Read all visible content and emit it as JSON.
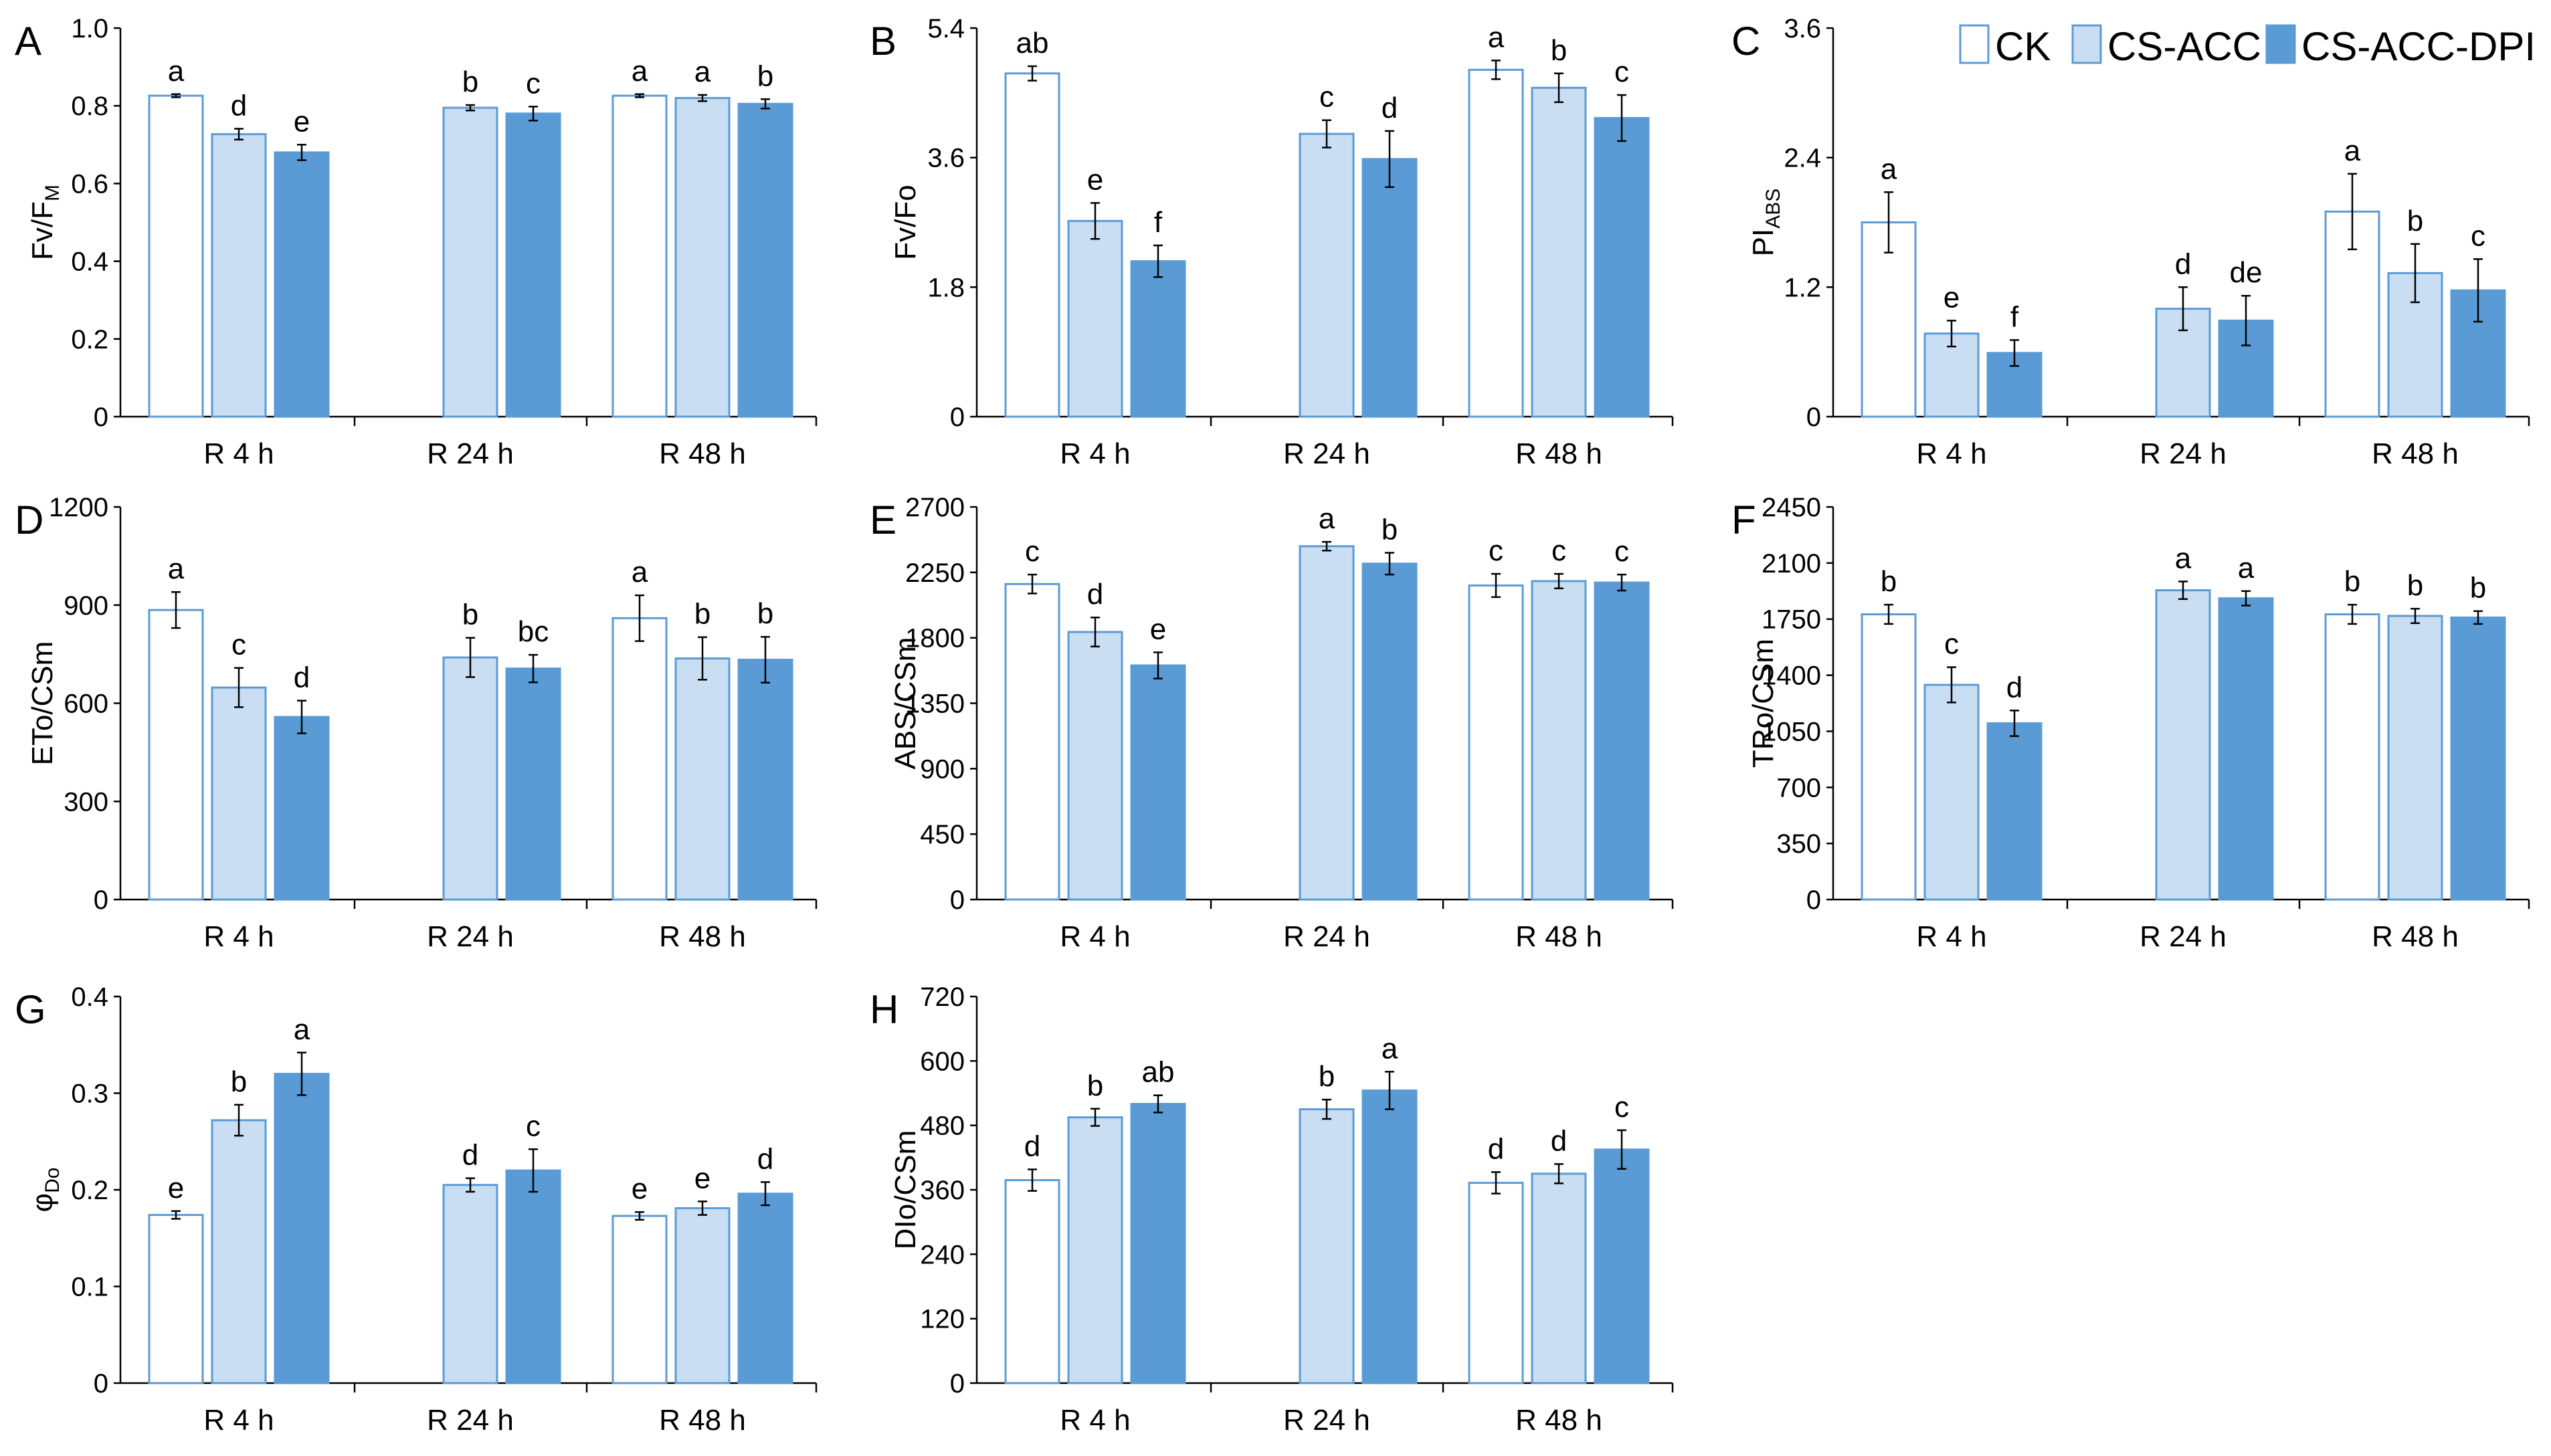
{
  "legend": {
    "items": [
      {
        "label": "CK",
        "fill": "#ffffff",
        "stroke": "#5b9bd5"
      },
      {
        "label": "CS-ACC",
        "fill": "#c9def2",
        "stroke": "#5b9bd5"
      },
      {
        "label": "CS-ACC-DPI",
        "fill": "#5b9bd5",
        "stroke": "#5b9bd5"
      }
    ]
  },
  "chart_data": [
    {
      "type": "bar",
      "panel": "A",
      "ylabel": "Fv/F",
      "ylabel_sub": "M",
      "ylim": [
        0,
        1.0
      ],
      "yticks": [
        "0",
        "0.2",
        "0.4",
        "0.6",
        "0.8",
        "1.0"
      ],
      "categories": [
        "R 4 h",
        "R 24 h",
        "R 48 h"
      ],
      "groups": [
        {
          "category": "R 4 h",
          "bars": [
            {
              "series": "CK",
              "value": 0.826,
              "error": 0.004,
              "letter": "a"
            },
            {
              "series": "CS-ACC",
              "value": 0.727,
              "error": 0.014,
              "letter": "d"
            },
            {
              "series": "CS-ACC-DPI",
              "value": 0.68,
              "error": 0.02,
              "letter": "e"
            }
          ]
        },
        {
          "category": "R 24 h",
          "bars": [
            {
              "series": "CS-ACC",
              "value": 0.795,
              "error": 0.007,
              "letter": "b"
            },
            {
              "series": "CS-ACC-DPI",
              "value": 0.78,
              "error": 0.018,
              "letter": "c"
            }
          ]
        },
        {
          "category": "R 48 h",
          "bars": [
            {
              "series": "CK",
              "value": 0.826,
              "error": 0.004,
              "letter": "a"
            },
            {
              "series": "CS-ACC",
              "value": 0.82,
              "error": 0.008,
              "letter": "a"
            },
            {
              "series": "CS-ACC-DPI",
              "value": 0.805,
              "error": 0.012,
              "letter": "b"
            }
          ]
        }
      ]
    },
    {
      "type": "bar",
      "panel": "B",
      "ylabel": "Fv/Fo",
      "ylabel_sub": "",
      "ylim": [
        0,
        5.4
      ],
      "yticks": [
        "0",
        "1.8",
        "3.6",
        "5.4"
      ],
      "categories": [
        "R 4 h",
        "R 24 h",
        "R 48 h"
      ],
      "groups": [
        {
          "category": "R 4 h",
          "bars": [
            {
              "series": "CK",
              "value": 4.77,
              "error": 0.1,
              "letter": "ab"
            },
            {
              "series": "CS-ACC",
              "value": 2.72,
              "error": 0.25,
              "letter": "e"
            },
            {
              "series": "CS-ACC-DPI",
              "value": 2.16,
              "error": 0.22,
              "letter": "f"
            }
          ]
        },
        {
          "category": "R 24 h",
          "bars": [
            {
              "series": "CS-ACC",
              "value": 3.93,
              "error": 0.19,
              "letter": "c"
            },
            {
              "series": "CS-ACC-DPI",
              "value": 3.58,
              "error": 0.39,
              "letter": "d"
            }
          ]
        },
        {
          "category": "R 48 h",
          "bars": [
            {
              "series": "CK",
              "value": 4.82,
              "error": 0.13,
              "letter": "a"
            },
            {
              "series": "CS-ACC",
              "value": 4.57,
              "error": 0.2,
              "letter": "b"
            },
            {
              "series": "CS-ACC-DPI",
              "value": 4.15,
              "error": 0.32,
              "letter": "c"
            }
          ]
        }
      ]
    },
    {
      "type": "bar",
      "panel": "C",
      "ylabel": "PI",
      "ylabel_sub": "ABS",
      "ylim": [
        0,
        3.6
      ],
      "yticks": [
        "0",
        "1.2",
        "2.4",
        "3.6"
      ],
      "categories": [
        "R 4 h",
        "R 24 h",
        "R 48 h"
      ],
      "groups": [
        {
          "category": "R 4 h",
          "bars": [
            {
              "series": "CK",
              "value": 1.8,
              "error": 0.28,
              "letter": "a"
            },
            {
              "series": "CS-ACC",
              "value": 0.77,
              "error": 0.12,
              "letter": "e"
            },
            {
              "series": "CS-ACC-DPI",
              "value": 0.59,
              "error": 0.12,
              "letter": "f"
            }
          ]
        },
        {
          "category": "R 24 h",
          "bars": [
            {
              "series": "CS-ACC",
              "value": 1.0,
              "error": 0.2,
              "letter": "d"
            },
            {
              "series": "CS-ACC-DPI",
              "value": 0.89,
              "error": 0.23,
              "letter": "de"
            }
          ]
        },
        {
          "category": "R 48 h",
          "bars": [
            {
              "series": "CK",
              "value": 1.9,
              "error": 0.35,
              "letter": "a"
            },
            {
              "series": "CS-ACC",
              "value": 1.33,
              "error": 0.27,
              "letter": "b"
            },
            {
              "series": "CS-ACC-DPI",
              "value": 1.17,
              "error": 0.29,
              "letter": "c"
            }
          ]
        }
      ]
    },
    {
      "type": "bar",
      "panel": "D",
      "ylabel": "ETo/CSm",
      "ylabel_sub": "",
      "ylim": [
        0,
        1200
      ],
      "yticks": [
        "0",
        "300",
        "600",
        "900",
        "1200"
      ],
      "categories": [
        "R 4 h",
        "R 24 h",
        "R 48 h"
      ],
      "groups": [
        {
          "category": "R 4 h",
          "bars": [
            {
              "series": "CK",
              "value": 885,
              "error": 55,
              "letter": "a"
            },
            {
              "series": "CS-ACC",
              "value": 648,
              "error": 60,
              "letter": "c"
            },
            {
              "series": "CS-ACC-DPI",
              "value": 558,
              "error": 50,
              "letter": "d"
            }
          ]
        },
        {
          "category": "R 24 h",
          "bars": [
            {
              "series": "CS-ACC",
              "value": 740,
              "error": 60,
              "letter": "b"
            },
            {
              "series": "CS-ACC-DPI",
              "value": 706,
              "error": 42,
              "letter": "bc"
            }
          ]
        },
        {
          "category": "R 48 h",
          "bars": [
            {
              "series": "CK",
              "value": 860,
              "error": 70,
              "letter": "a"
            },
            {
              "series": "CS-ACC",
              "value": 737,
              "error": 65,
              "letter": "b"
            },
            {
              "series": "CS-ACC-DPI",
              "value": 733,
              "error": 70,
              "letter": "b"
            }
          ]
        }
      ]
    },
    {
      "type": "bar",
      "panel": "E",
      "ylabel": "ABS/CSm",
      "ylabel_sub": "",
      "ylim": [
        0,
        2700
      ],
      "yticks": [
        "0",
        "450",
        "900",
        "1350",
        "1800",
        "2250",
        "2700"
      ],
      "categories": [
        "R 4 h",
        "R 24 h",
        "R 48 h"
      ],
      "groups": [
        {
          "category": "R 4 h",
          "bars": [
            {
              "series": "CK",
              "value": 2170,
              "error": 65,
              "letter": "c"
            },
            {
              "series": "CS-ACC",
              "value": 1840,
              "error": 100,
              "letter": "d"
            },
            {
              "series": "CS-ACC-DPI",
              "value": 1610,
              "error": 90,
              "letter": "e"
            }
          ]
        },
        {
          "category": "R 24 h",
          "bars": [
            {
              "series": "CS-ACC",
              "value": 2430,
              "error": 30,
              "letter": "a"
            },
            {
              "series": "CS-ACC-DPI",
              "value": 2310,
              "error": 75,
              "letter": "b"
            }
          ]
        },
        {
          "category": "R 48 h",
          "bars": [
            {
              "series": "CK",
              "value": 2160,
              "error": 80,
              "letter": "c"
            },
            {
              "series": "CS-ACC",
              "value": 2190,
              "error": 50,
              "letter": "c"
            },
            {
              "series": "CS-ACC-DPI",
              "value": 2180,
              "error": 55,
              "letter": "c"
            }
          ]
        }
      ]
    },
    {
      "type": "bar",
      "panel": "F",
      "ylabel": "TRo/CSm",
      "ylabel_sub": "",
      "ylim": [
        0,
        2450
      ],
      "yticks": [
        "0",
        "350",
        "700",
        "1050",
        "1400",
        "1750",
        "2100",
        "2450"
      ],
      "categories": [
        "R 4 h",
        "R 24 h",
        "R 48 h"
      ],
      "groups": [
        {
          "category": "R 4 h",
          "bars": [
            {
              "series": "CK",
              "value": 1780,
              "error": 60,
              "letter": "b"
            },
            {
              "series": "CS-ACC",
              "value": 1340,
              "error": 110,
              "letter": "c"
            },
            {
              "series": "CS-ACC-DPI",
              "value": 1100,
              "error": 80,
              "letter": "d"
            }
          ]
        },
        {
          "category": "R 24 h",
          "bars": [
            {
              "series": "CS-ACC",
              "value": 1930,
              "error": 55,
              "letter": "a"
            },
            {
              "series": "CS-ACC-DPI",
              "value": 1880,
              "error": 45,
              "letter": "a"
            }
          ]
        },
        {
          "category": "R 48 h",
          "bars": [
            {
              "series": "CK",
              "value": 1780,
              "error": 60,
              "letter": "b"
            },
            {
              "series": "CS-ACC",
              "value": 1770,
              "error": 45,
              "letter": "b"
            },
            {
              "series": "CS-ACC-DPI",
              "value": 1760,
              "error": 40,
              "letter": "b"
            }
          ]
        }
      ]
    },
    {
      "type": "bar",
      "panel": "G",
      "ylabel": "φ",
      "ylabel_sub": "Do",
      "ylim": [
        0,
        0.4
      ],
      "yticks": [
        "0",
        "0.1",
        "0.2",
        "0.3",
        "0.4"
      ],
      "categories": [
        "R 4 h",
        "R 24 h",
        "R 48 h"
      ],
      "groups": [
        {
          "category": "R 4 h",
          "bars": [
            {
              "series": "CK",
              "value": 0.174,
              "error": 0.004,
              "letter": "e"
            },
            {
              "series": "CS-ACC",
              "value": 0.272,
              "error": 0.016,
              "letter": "b"
            },
            {
              "series": "CS-ACC-DPI",
              "value": 0.32,
              "error": 0.022,
              "letter": "a"
            }
          ]
        },
        {
          "category": "R 24 h",
          "bars": [
            {
              "series": "CS-ACC",
              "value": 0.205,
              "error": 0.007,
              "letter": "d"
            },
            {
              "series": "CS-ACC-DPI",
              "value": 0.22,
              "error": 0.022,
              "letter": "c"
            }
          ]
        },
        {
          "category": "R 48 h",
          "bars": [
            {
              "series": "CK",
              "value": 0.173,
              "error": 0.004,
              "letter": "e"
            },
            {
              "series": "CS-ACC",
              "value": 0.181,
              "error": 0.007,
              "letter": "e"
            },
            {
              "series": "CS-ACC-DPI",
              "value": 0.196,
              "error": 0.012,
              "letter": "d"
            }
          ]
        }
      ]
    },
    {
      "type": "bar",
      "panel": "H",
      "ylabel": "DIo/CSm",
      "ylabel_sub": "",
      "ylim": [
        0,
        720
      ],
      "yticks": [
        "0",
        "120",
        "240",
        "360",
        "480",
        "600",
        "720"
      ],
      "categories": [
        "R 4 h",
        "R 24 h",
        "R 48 h"
      ],
      "groups": [
        {
          "category": "R 4 h",
          "bars": [
            {
              "series": "CK",
              "value": 378,
              "error": 20,
              "letter": "d"
            },
            {
              "series": "CS-ACC",
              "value": 495,
              "error": 16,
              "letter": "b"
            },
            {
              "series": "CS-ACC-DPI",
              "value": 520,
              "error": 16,
              "letter": "ab"
            }
          ]
        },
        {
          "category": "R 24 h",
          "bars": [
            {
              "series": "CS-ACC",
              "value": 510,
              "error": 18,
              "letter": "b"
            },
            {
              "series": "CS-ACC-DPI",
              "value": 545,
              "error": 35,
              "letter": "a"
            }
          ]
        },
        {
          "category": "R 48 h",
          "bars": [
            {
              "series": "CK",
              "value": 373,
              "error": 20,
              "letter": "d"
            },
            {
              "series": "CS-ACC",
              "value": 390,
              "error": 18,
              "letter": "d"
            },
            {
              "series": "CS-ACC-DPI",
              "value": 435,
              "error": 36,
              "letter": "c"
            }
          ]
        }
      ]
    }
  ]
}
